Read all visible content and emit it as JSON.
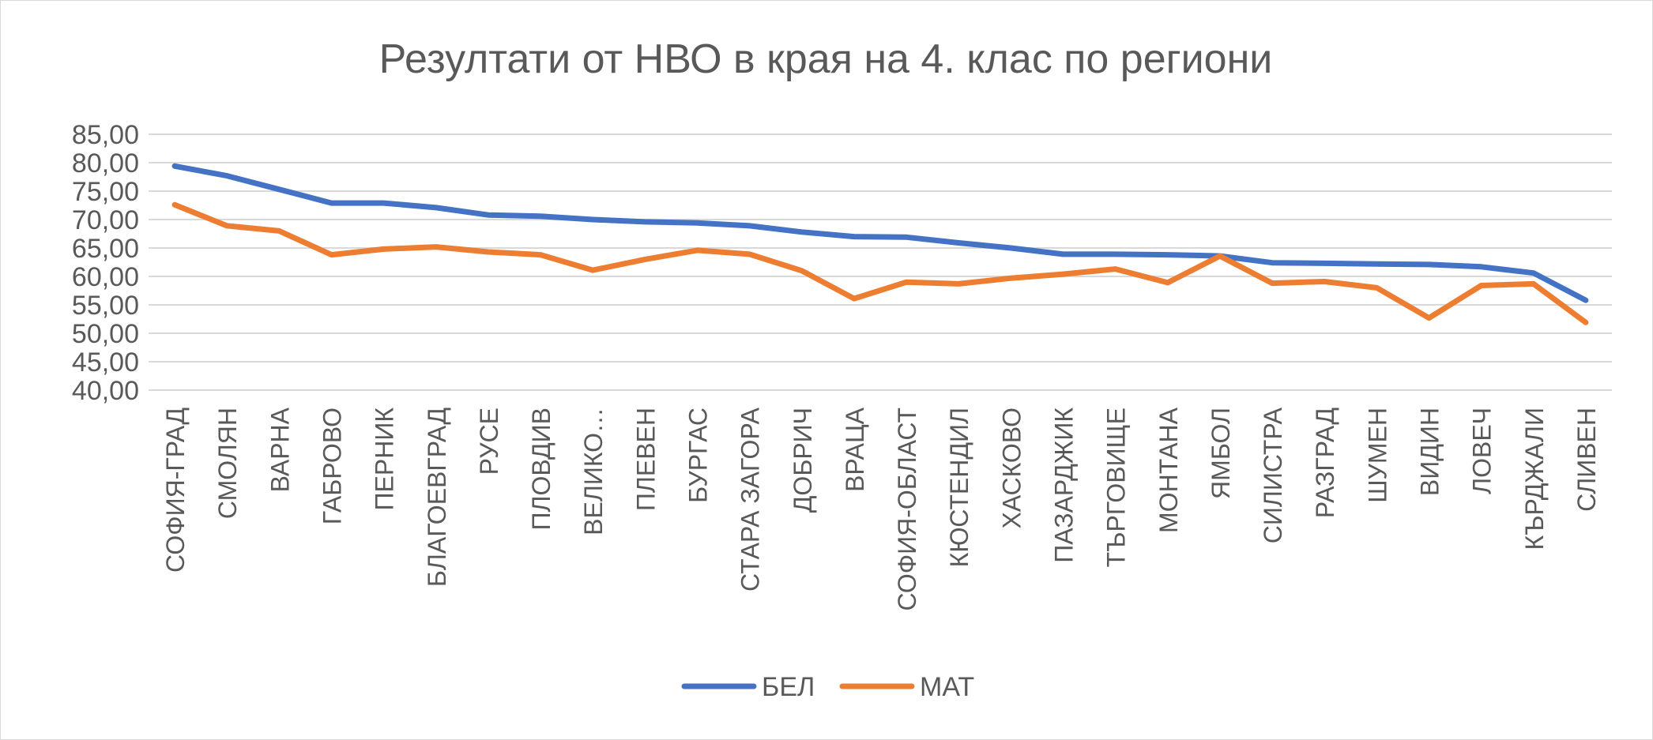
{
  "chart_data": {
    "type": "line",
    "title": "Резултати от НВО в края на 4. клас по региони",
    "xlabel": "",
    "ylabel": "",
    "ylim": [
      40,
      85
    ],
    "ytick_step": 5,
    "ytick_labels": [
      "40,00",
      "45,00",
      "50,00",
      "55,00",
      "60,00",
      "65,00",
      "70,00",
      "75,00",
      "80,00",
      "85,00"
    ],
    "grid": true,
    "legend_position": "bottom",
    "categories": [
      "СОФИЯ-ГРАД",
      "СМОЛЯН",
      "ВАРНА",
      "ГАБРОВО",
      "ПЕРНИК",
      "БЛАГОЕВГРАД",
      "РУСЕ",
      "ПЛОВДИВ",
      "ВЕЛИКО…",
      "ПЛЕВЕН",
      "БУРГАС",
      "СТАРА ЗАГОРА",
      "ДОБРИЧ",
      "ВРАЦА",
      "СОФИЯ-ОБЛАСТ",
      "КЮСТЕНДИЛ",
      "ХАСКОВО",
      "ПАЗАРДЖИК",
      "ТЪРГОВИЩЕ",
      "МОНТАНА",
      "ЯМБОЛ",
      "СИЛИСТРА",
      "РАЗГРАД",
      "ШУМЕН",
      "ВИДИН",
      "ЛОВЕЧ",
      "КЪРДЖАЛИ",
      "СЛИВЕН"
    ],
    "series": [
      {
        "name": "БЕЛ",
        "color": "#4472c4",
        "values": [
          79.4,
          77.7,
          75.3,
          72.9,
          72.9,
          72.1,
          70.8,
          70.6,
          70.0,
          69.6,
          69.4,
          68.9,
          67.8,
          67.0,
          66.9,
          65.9,
          65.0,
          63.9,
          63.9,
          63.8,
          63.6,
          62.4,
          62.3,
          62.2,
          62.1,
          61.7,
          60.6,
          55.8
        ]
      },
      {
        "name": "МАТ",
        "color": "#ed7d31",
        "values": [
          72.6,
          68.9,
          68.0,
          63.8,
          64.8,
          65.2,
          64.3,
          63.8,
          61.1,
          63.0,
          64.6,
          63.9,
          61.0,
          56.1,
          59.0,
          58.7,
          59.7,
          60.4,
          61.3,
          58.9,
          63.6,
          58.8,
          59.1,
          58.0,
          52.7,
          58.4,
          58.7,
          51.9
        ]
      }
    ]
  }
}
